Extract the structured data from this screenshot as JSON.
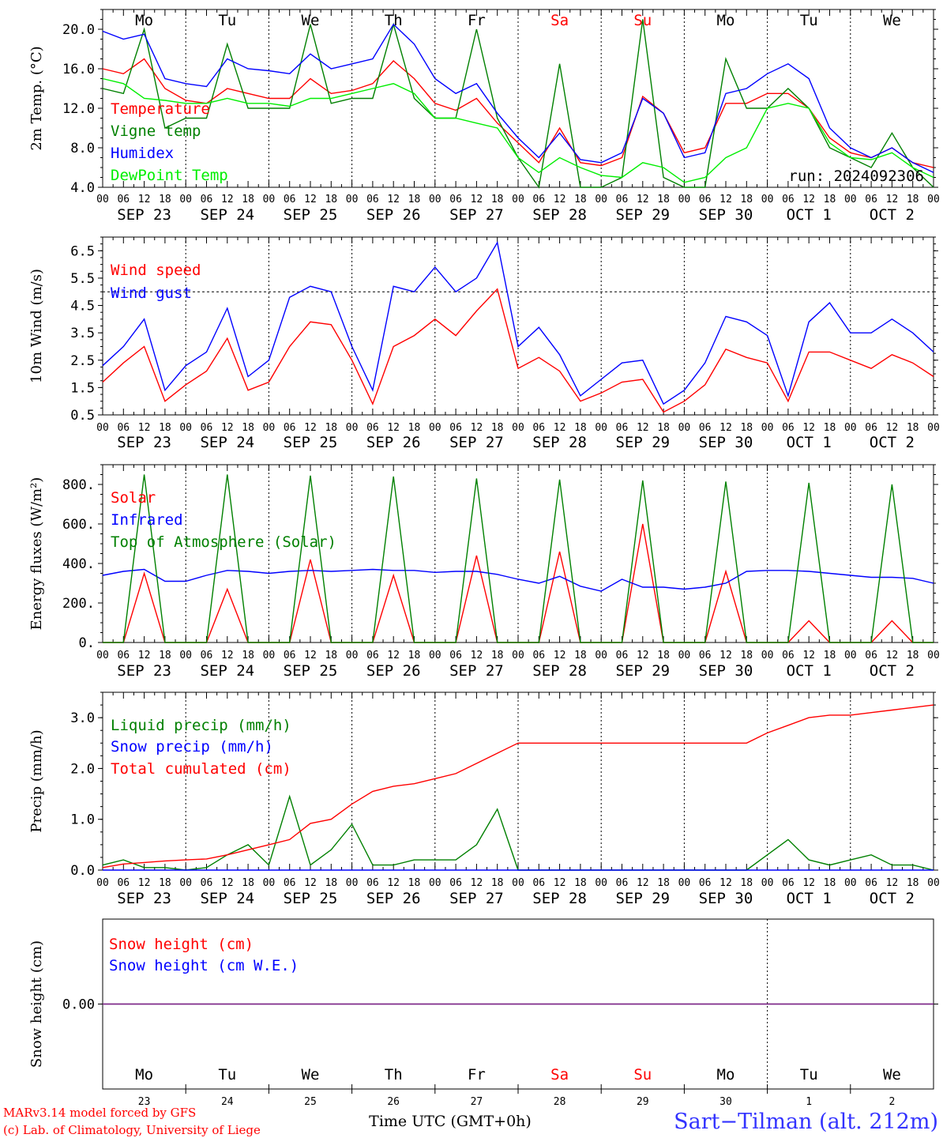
{
  "chart_data": [
    {
      "type": "line",
      "ylabel": "2m Temp. (°C)",
      "ylim": [
        4.0,
        22.0
      ],
      "yticks": [
        4.0,
        8.0,
        12.0,
        16.0,
        20.0
      ],
      "ytick_labels": [
        "4.0",
        "8.0",
        "12.0",
        "16.0",
        "20.0"
      ],
      "annotation": "run: 2024092306",
      "x_hours": [
        0,
        6,
        12,
        18,
        24,
        30,
        36,
        42,
        48,
        54,
        60,
        66,
        72,
        78,
        84,
        90,
        96,
        102,
        108,
        114,
        120,
        126,
        132,
        138,
        144,
        150,
        156,
        162,
        168,
        174,
        180,
        186,
        192,
        198,
        204,
        210,
        216,
        222,
        228,
        234,
        240
      ],
      "series": [
        {
          "name": "Temperature",
          "color": "#ff0000",
          "values": [
            16.0,
            15.5,
            17.0,
            14.0,
            12.8,
            12.5,
            14.0,
            13.5,
            13.0,
            13.0,
            15.0,
            13.5,
            13.8,
            14.5,
            16.8,
            15.0,
            12.5,
            11.8,
            13.0,
            10.5,
            8.5,
            6.5,
            10.0,
            6.5,
            6.2,
            7.0,
            13.2,
            11.5,
            7.5,
            8.0,
            12.5,
            12.5,
            13.5,
            13.5,
            12.0,
            9.0,
            7.5,
            7.0,
            8.0,
            6.5,
            6.0
          ]
        },
        {
          "name": "Vigne temp",
          "color": "#008000",
          "values": [
            14.0,
            13.5,
            20.0,
            10.0,
            11.0,
            11.0,
            18.5,
            12.0,
            12.0,
            12.0,
            20.5,
            12.5,
            13.0,
            13.0,
            20.5,
            13.0,
            11.0,
            11.0,
            20.0,
            11.0,
            7.0,
            4.0,
            16.5,
            4.0,
            4.0,
            5.0,
            21.0,
            5.0,
            3.5,
            3.5,
            17.0,
            12.0,
            12.0,
            14.0,
            12.0,
            8.0,
            7.0,
            6.0,
            9.5,
            6.0,
            4.0
          ]
        },
        {
          "name": "Humidex",
          "color": "#0000ff",
          "values": [
            19.8,
            19.0,
            19.5,
            15.0,
            14.5,
            14.2,
            17.0,
            16.0,
            15.8,
            15.5,
            17.5,
            16.0,
            16.5,
            17.0,
            20.5,
            18.5,
            15.0,
            13.5,
            14.5,
            11.5,
            9.0,
            7.0,
            9.5,
            6.8,
            6.5,
            7.5,
            13.0,
            11.5,
            7.0,
            7.5,
            13.5,
            14.0,
            15.5,
            16.5,
            15.0,
            10.0,
            8.0,
            7.0,
            8.0,
            6.5,
            5.5
          ]
        },
        {
          "name": "DewPoint Temp",
          "color": "#00ee00",
          "values": [
            15.0,
            14.5,
            13.0,
            12.8,
            12.5,
            12.5,
            13.0,
            12.5,
            12.5,
            12.2,
            13.0,
            13.0,
            13.5,
            14.0,
            14.5,
            13.5,
            11.0,
            11.0,
            10.5,
            10.0,
            7.0,
            5.5,
            7.0,
            6.0,
            5.2,
            5.0,
            6.5,
            6.0,
            4.5,
            5.0,
            7.0,
            8.0,
            12.0,
            12.5,
            12.0,
            8.5,
            7.0,
            6.8,
            7.5,
            6.0,
            5.0
          ]
        }
      ]
    },
    {
      "type": "line",
      "ylabel": "10m Wind (m/s)",
      "ylim": [
        0.5,
        7.0
      ],
      "yticks": [
        0.5,
        1.5,
        2.5,
        3.5,
        4.5,
        5.5,
        6.5
      ],
      "ytick_labels": [
        "0.5",
        "1.5",
        "2.5",
        "3.5",
        "4.5",
        "5.5",
        "6.5"
      ],
      "reference_line": 5.0,
      "x_hours": [
        0,
        6,
        12,
        18,
        24,
        30,
        36,
        42,
        48,
        54,
        60,
        66,
        72,
        78,
        84,
        90,
        96,
        102,
        108,
        114,
        120,
        126,
        132,
        138,
        144,
        150,
        156,
        162,
        168,
        174,
        180,
        186,
        192,
        198,
        204,
        210,
        216,
        222,
        228,
        234,
        240
      ],
      "series": [
        {
          "name": "Wind speed",
          "color": "#ff0000",
          "values": [
            1.7,
            2.4,
            3.0,
            1.0,
            1.6,
            2.1,
            3.3,
            1.4,
            1.7,
            3.0,
            3.9,
            3.8,
            2.5,
            0.9,
            3.0,
            3.4,
            4.0,
            3.4,
            4.3,
            5.1,
            2.2,
            2.6,
            2.1,
            1.0,
            1.3,
            1.7,
            1.8,
            0.6,
            1.0,
            1.6,
            2.9,
            2.6,
            2.4,
            1.0,
            2.8,
            2.8,
            2.5,
            2.2,
            2.7,
            2.4,
            1.9
          ]
        },
        {
          "name": "Wind gust",
          "color": "#0000ff",
          "values": [
            2.3,
            3.0,
            4.0,
            1.4,
            2.3,
            2.8,
            4.4,
            1.9,
            2.5,
            4.8,
            5.2,
            5.0,
            3.0,
            1.4,
            5.2,
            5.0,
            5.9,
            5.0,
            5.5,
            6.8,
            3.0,
            3.7,
            2.7,
            1.2,
            1.8,
            2.4,
            2.5,
            0.9,
            1.4,
            2.4,
            4.1,
            3.9,
            3.4,
            1.2,
            3.9,
            4.6,
            3.5,
            3.5,
            4.0,
            3.5,
            2.8
          ]
        }
      ]
    },
    {
      "type": "line",
      "ylabel": "Energy fluxes (W/m²)",
      "ylim": [
        0,
        900
      ],
      "yticks": [
        0,
        200,
        400,
        600,
        800
      ],
      "ytick_labels": [
        "0.",
        "200.",
        "400.",
        "600.",
        "800."
      ],
      "x_hours": [
        0,
        6,
        12,
        18,
        24,
        30,
        36,
        42,
        48,
        54,
        60,
        66,
        72,
        78,
        84,
        90,
        96,
        102,
        108,
        114,
        120,
        126,
        132,
        138,
        144,
        150,
        156,
        162,
        168,
        174,
        180,
        186,
        192,
        198,
        204,
        210,
        216,
        222,
        228,
        234,
        240
      ],
      "series": [
        {
          "name": "Solar",
          "color": "#ff0000",
          "values": [
            0,
            0,
            350,
            0,
            0,
            0,
            270,
            0,
            0,
            0,
            420,
            0,
            0,
            0,
            340,
            0,
            0,
            0,
            440,
            0,
            0,
            0,
            460,
            0,
            0,
            0,
            600,
            0,
            0,
            0,
            360,
            0,
            0,
            0,
            110,
            0,
            0,
            0,
            110,
            0,
            0
          ]
        },
        {
          "name": "Infrared",
          "color": "#0000ff",
          "values": [
            340,
            360,
            370,
            310,
            310,
            340,
            365,
            360,
            350,
            360,
            365,
            360,
            365,
            370,
            365,
            365,
            355,
            360,
            360,
            345,
            320,
            300,
            335,
            285,
            260,
            320,
            280,
            280,
            270,
            280,
            300,
            360,
            365,
            365,
            360,
            350,
            340,
            330,
            330,
            325,
            300
          ]
        },
        {
          "name": "Top of Atmosphere (Solar)",
          "color": "#008000",
          "values": [
            0,
            0,
            850,
            0,
            0,
            0,
            850,
            0,
            0,
            0,
            845,
            0,
            0,
            0,
            840,
            0,
            0,
            0,
            830,
            0,
            0,
            0,
            825,
            0,
            0,
            0,
            820,
            0,
            0,
            0,
            815,
            0,
            0,
            0,
            808,
            0,
            0,
            0,
            800,
            0,
            0
          ]
        }
      ]
    },
    {
      "type": "line",
      "ylabel": "Precip (mm/h)",
      "ylim": [
        0.0,
        3.5
      ],
      "yticks": [
        0.0,
        1.0,
        2.0,
        3.0
      ],
      "ytick_labels": [
        "0.0",
        "1.0",
        "2.0",
        "3.0"
      ],
      "x_hours": [
        0,
        6,
        12,
        18,
        24,
        30,
        36,
        42,
        48,
        54,
        60,
        66,
        72,
        78,
        84,
        90,
        96,
        102,
        108,
        114,
        120,
        126,
        132,
        138,
        144,
        150,
        156,
        162,
        168,
        174,
        180,
        186,
        192,
        198,
        204,
        210,
        216,
        222,
        228,
        234,
        240
      ],
      "series": [
        {
          "name": "Liquid precip (mm/h)",
          "color": "#008000",
          "values": [
            0.1,
            0.2,
            0.05,
            0.05,
            0.0,
            0.05,
            0.3,
            0.5,
            0.1,
            1.45,
            0.1,
            0.4,
            0.9,
            0.1,
            0.1,
            0.2,
            0.2,
            0.2,
            0.5,
            1.2,
            0.0,
            0.0,
            0.0,
            0.0,
            0.0,
            0.0,
            0.0,
            0.0,
            0.0,
            0.0,
            0.0,
            0.0,
            0.3,
            0.6,
            0.2,
            0.1,
            0.2,
            0.3,
            0.1,
            0.1,
            0.0
          ]
        },
        {
          "name": "Snow precip (mm/h)",
          "color": "#0000ff",
          "values": [
            0,
            0,
            0,
            0,
            0,
            0,
            0,
            0,
            0,
            0,
            0,
            0,
            0,
            0,
            0,
            0,
            0,
            0,
            0,
            0,
            0,
            0,
            0,
            0,
            0,
            0,
            0,
            0,
            0,
            0,
            0,
            0,
            0,
            0,
            0,
            0,
            0,
            0,
            0,
            0,
            0
          ]
        },
        {
          "name": "Total cumulated (cm)",
          "color": "#ff0000",
          "values": [
            0.05,
            0.12,
            0.15,
            0.18,
            0.2,
            0.22,
            0.3,
            0.4,
            0.5,
            0.6,
            0.92,
            1.0,
            1.3,
            1.55,
            1.65,
            1.7,
            1.8,
            1.9,
            2.1,
            2.3,
            2.5,
            2.5,
            2.5,
            2.5,
            2.5,
            2.5,
            2.5,
            2.5,
            2.5,
            2.5,
            2.5,
            2.5,
            2.7,
            2.85,
            3.0,
            3.05,
            3.05,
            3.1,
            3.15,
            3.2,
            3.25
          ]
        }
      ]
    },
    {
      "type": "line",
      "ylabel": "Snow height (cm)",
      "ylim": [
        -1,
        1
      ],
      "yticks": [
        0.0
      ],
      "ytick_labels": [
        "0.00"
      ],
      "x_hours": [
        0,
        240
      ],
      "series": [
        {
          "name": "Snow height (cm)",
          "color": "#ff0000",
          "values": [
            0,
            0
          ]
        },
        {
          "name": "Snow height (cm W.E.)",
          "color": "#0000ff",
          "values": [
            0,
            0
          ]
        }
      ]
    }
  ],
  "top_days": [
    {
      "label": "Mo",
      "color": "#000000"
    },
    {
      "label": "Tu",
      "color": "#000000"
    },
    {
      "label": "We",
      "color": "#000000"
    },
    {
      "label": "Th",
      "color": "#000000"
    },
    {
      "label": "Fr",
      "color": "#000000"
    },
    {
      "label": "Sa",
      "color": "#ff0000"
    },
    {
      "label": "Su",
      "color": "#ff0000"
    },
    {
      "label": "Mo",
      "color": "#000000"
    },
    {
      "label": "Tu",
      "color": "#000000"
    },
    {
      "label": "We",
      "color": "#000000"
    }
  ],
  "hour_labels": [
    "00",
    "06",
    "12",
    "18"
  ],
  "end_hour_label": "00",
  "date_labels": [
    "SEP 23",
    "SEP 24",
    "SEP 25",
    "SEP 26",
    "SEP 27",
    "SEP 28",
    "SEP 29",
    "SEP 30",
    "OCT  1",
    "OCT  2"
  ],
  "bottom_day_numbers": [
    "23",
    "24",
    "25",
    "26",
    "27",
    "28",
    "29",
    "30",
    "1",
    "2"
  ],
  "footer": {
    "credit_line1": "MARv3.14 model forced by GFS",
    "credit_line2": "(c) Lab. of Climatology, University of Liege",
    "time_label": "Time UTC (GMT+0h)",
    "station": "Sart−Tilman (alt. 212m)"
  }
}
